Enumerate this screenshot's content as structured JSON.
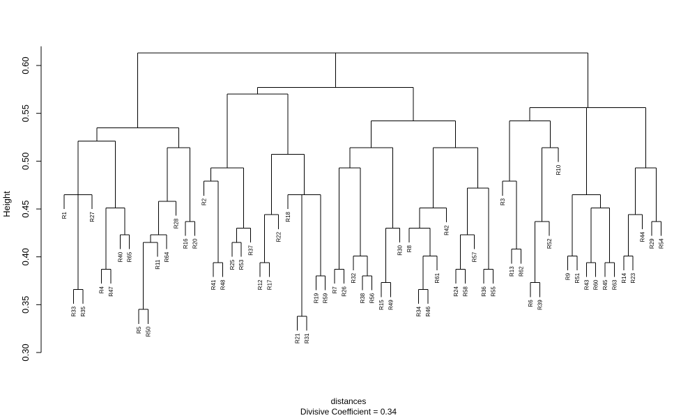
{
  "chart_data": {
    "type": "dendrogram",
    "xlabel": "distances",
    "subtitle": "Divisive Coefficient =  0.34",
    "ylabel": "Height",
    "ylim": [
      0.3,
      0.62
    ],
    "yticks": [
      0.3,
      0.35,
      0.4,
      0.45,
      0.5,
      0.55,
      0.6
    ],
    "ytick_labels": [
      "0.30",
      "0.35",
      "0.40",
      "0.45",
      "0.50",
      "0.55",
      "0.60"
    ],
    "grid": false,
    "leaves": [
      "R1",
      "R33",
      "R35",
      "R27",
      "R4",
      "R47",
      "R40",
      "R65",
      "R5",
      "R50",
      "R11",
      "R64",
      "R28",
      "R16",
      "R20",
      "R2",
      "R41",
      "R48",
      "R25",
      "R53",
      "R37",
      "R12",
      "R17",
      "R22",
      "R18",
      "R21",
      "R31",
      "R19",
      "R59",
      "R7",
      "R26",
      "R32",
      "R38",
      "R56",
      "R15",
      "R49",
      "R30",
      "R8",
      "R34",
      "R46",
      "R61",
      "R42",
      "R24",
      "R58",
      "R57",
      "R36",
      "R55",
      "R3",
      "R13",
      "R62",
      "R6",
      "R39",
      "R52",
      "R10",
      "R9",
      "R51",
      "R43",
      "R60",
      "R45",
      "R63",
      "R14",
      "R23",
      "R44",
      "R29",
      "R54"
    ],
    "tree": {
      "h": 0.613,
      "c": [
        {
          "h": 0.535,
          "c": [
            {
              "h": 0.521,
              "c": [
                {
                  "h": 0.465,
                  "c": [
                    "R1",
                    {
                      "h": 0.366,
                      "c": [
                        "R33",
                        "R35"
                      ]
                    },
                    "R27"
                  ]
                },
                {
                  "h": 0.451,
                  "c": [
                    {
                      "h": 0.387,
                      "c": [
                        "R4",
                        "R47"
                      ]
                    },
                    {
                      "h": 0.423,
                      "c": [
                        "R40",
                        "R65"
                      ]
                    }
                  ]
                }
              ]
            },
            {
              "h": 0.514,
              "c": [
                {
                  "h": 0.458,
                  "c": [
                    {
                      "h": 0.423,
                      "c": [
                        {
                          "h": 0.415,
                          "c": [
                            {
                              "h": 0.345,
                              "c": [
                                "R5",
                                "R50"
                              ]
                            },
                            "R11"
                          ]
                        },
                        "R64"
                      ]
                    },
                    "R28"
                  ]
                },
                {
                  "h": 0.437,
                  "c": [
                    "R16",
                    "R20"
                  ]
                }
              ]
            }
          ]
        },
        {
          "h": 0.577,
          "c": [
            {
              "h": 0.57,
              "c": [
                {
                  "h": 0.493,
                  "c": [
                    {
                      "h": 0.479,
                      "c": [
                        "R2",
                        {
                          "h": 0.394,
                          "c": [
                            "R41",
                            "R48"
                          ]
                        }
                      ]
                    },
                    {
                      "h": 0.43,
                      "c": [
                        {
                          "h": 0.415,
                          "c": [
                            "R25",
                            "R53"
                          ]
                        },
                        "R37"
                      ]
                    }
                  ]
                },
                {
                  "h": 0.507,
                  "c": [
                    {
                      "h": 0.444,
                      "c": [
                        {
                          "h": 0.394,
                          "c": [
                            "R12",
                            "R17"
                          ]
                        },
                        "R22"
                      ]
                    },
                    {
                      "h": 0.465,
                      "c": [
                        "R18",
                        {
                          "h": 0.338,
                          "c": [
                            "R21",
                            "R31"
                          ]
                        },
                        {
                          "h": 0.38,
                          "c": [
                            "R19",
                            "R59"
                          ]
                        }
                      ]
                    }
                  ]
                }
              ]
            },
            {
              "h": 0.542,
              "c": [
                {
                  "h": 0.514,
                  "c": [
                    {
                      "h": 0.493,
                      "c": [
                        {
                          "h": 0.387,
                          "c": [
                            "R7",
                            "R26"
                          ]
                        },
                        {
                          "h": 0.401,
                          "c": [
                            "R32",
                            {
                              "h": 0.38,
                              "c": [
                                "R38",
                                "R56"
                              ]
                            }
                          ]
                        }
                      ]
                    },
                    {
                      "h": 0.43,
                      "c": [
                        {
                          "h": 0.373,
                          "c": [
                            "R15",
                            "R49"
                          ]
                        },
                        "R30"
                      ]
                    }
                  ]
                },
                {
                  "h": 0.514,
                  "c": [
                    {
                      "h": 0.451,
                      "c": [
                        {
                          "h": 0.43,
                          "c": [
                            "R8",
                            {
                              "h": 0.401,
                              "c": [
                                {
                                  "h": 0.366,
                                  "c": [
                                    "R34",
                                    "R46"
                                  ]
                                },
                                "R61"
                              ]
                            }
                          ]
                        },
                        "R42"
                      ]
                    },
                    {
                      "h": 0.472,
                      "c": [
                        {
                          "h": 0.423,
                          "c": [
                            {
                              "h": 0.387,
                              "c": [
                                "R24",
                                "R58"
                              ]
                            },
                            "R57"
                          ]
                        },
                        {
                          "h": 0.387,
                          "c": [
                            "R36",
                            "R55"
                          ]
                        }
                      ]
                    }
                  ]
                }
              ]
            }
          ]
        },
        {
          "h": 0.556,
          "c": [
            {
              "h": 0.542,
              "c": [
                {
                  "h": 0.479,
                  "c": [
                    "R3",
                    {
                      "h": 0.408,
                      "c": [
                        "R13",
                        "R62"
                      ]
                    }
                  ]
                },
                {
                  "h": 0.514,
                  "c": [
                    {
                      "h": 0.437,
                      "c": [
                        {
                          "h": 0.373,
                          "c": [
                            "R6",
                            "R39"
                          ]
                        },
                        "R52"
                      ]
                    },
                    "R10"
                  ]
                }
              ]
            },
            {
              "h": 0.465,
              "c": [
                {
                  "h": 0.401,
                  "c": [
                    "R9",
                    "R51"
                  ]
                },
                {
                  "h": 0.451,
                  "c": [
                    {
                      "h": 0.394,
                      "c": [
                        "R43",
                        "R60"
                      ]
                    },
                    {
                      "h": 0.394,
                      "c": [
                        "R45",
                        "R63"
                      ]
                    }
                  ]
                }
              ]
            },
            {
              "h": 0.493,
              "c": [
                {
                  "h": 0.444,
                  "c": [
                    {
                      "h": 0.401,
                      "c": [
                        "R14",
                        "R23"
                      ]
                    },
                    "R44"
                  ]
                },
                {
                  "h": 0.437,
                  "c": [
                    "R29",
                    "R54"
                  ]
                }
              ]
            }
          ]
        }
      ]
    }
  }
}
